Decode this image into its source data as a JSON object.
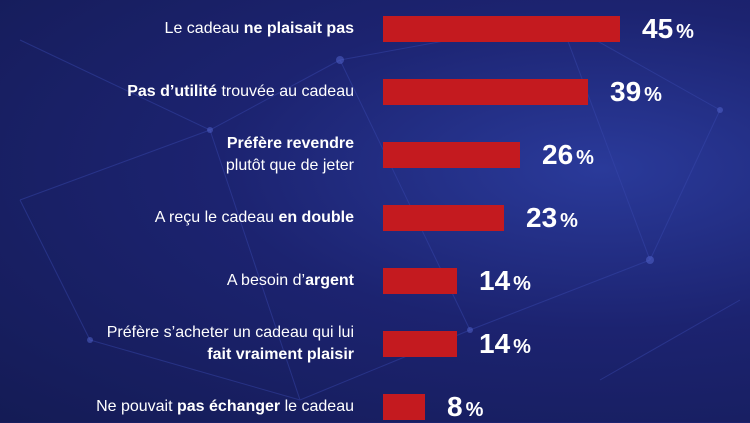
{
  "colors": {
    "background": "#1c2370",
    "bar": "#c41a1f",
    "text": "#ffffff"
  },
  "chart_data": {
    "type": "bar",
    "orientation": "horizontal",
    "unit": "%",
    "max_value": 45,
    "categories": [
      [
        {
          "t": "Le cadeau ",
          "b": false
        },
        {
          "t": "ne plaisait pas",
          "b": true
        }
      ],
      [
        {
          "t": "Pas d’utilité",
          "b": true
        },
        {
          "t": " trouvée au cadeau",
          "b": false
        }
      ],
      [
        {
          "t": "Préfère revendre",
          "b": true
        },
        {
          "br": true
        },
        {
          "t": "plutôt que de jeter",
          "b": false
        }
      ],
      [
        {
          "t": "A reçu le cadeau ",
          "b": false
        },
        {
          "t": "en double",
          "b": true
        }
      ],
      [
        {
          "t": "A besoin d’",
          "b": false
        },
        {
          "t": "argent",
          "b": true
        }
      ],
      [
        {
          "t": "Préfère s’acheter un cadeau qui lui",
          "b": false
        },
        {
          "br": true
        },
        {
          "t": "fait vraiment plaisir",
          "b": true
        }
      ],
      [
        {
          "t": "Ne pouvait ",
          "b": false
        },
        {
          "t": "pas échanger",
          "b": true
        },
        {
          "t": " le cadeau",
          "b": false
        }
      ]
    ],
    "values": [
      45,
      39,
      26,
      23,
      14,
      14,
      8
    ],
    "value_labels": [
      "45",
      "39",
      "26",
      "23",
      "14",
      "14",
      "8"
    ]
  }
}
